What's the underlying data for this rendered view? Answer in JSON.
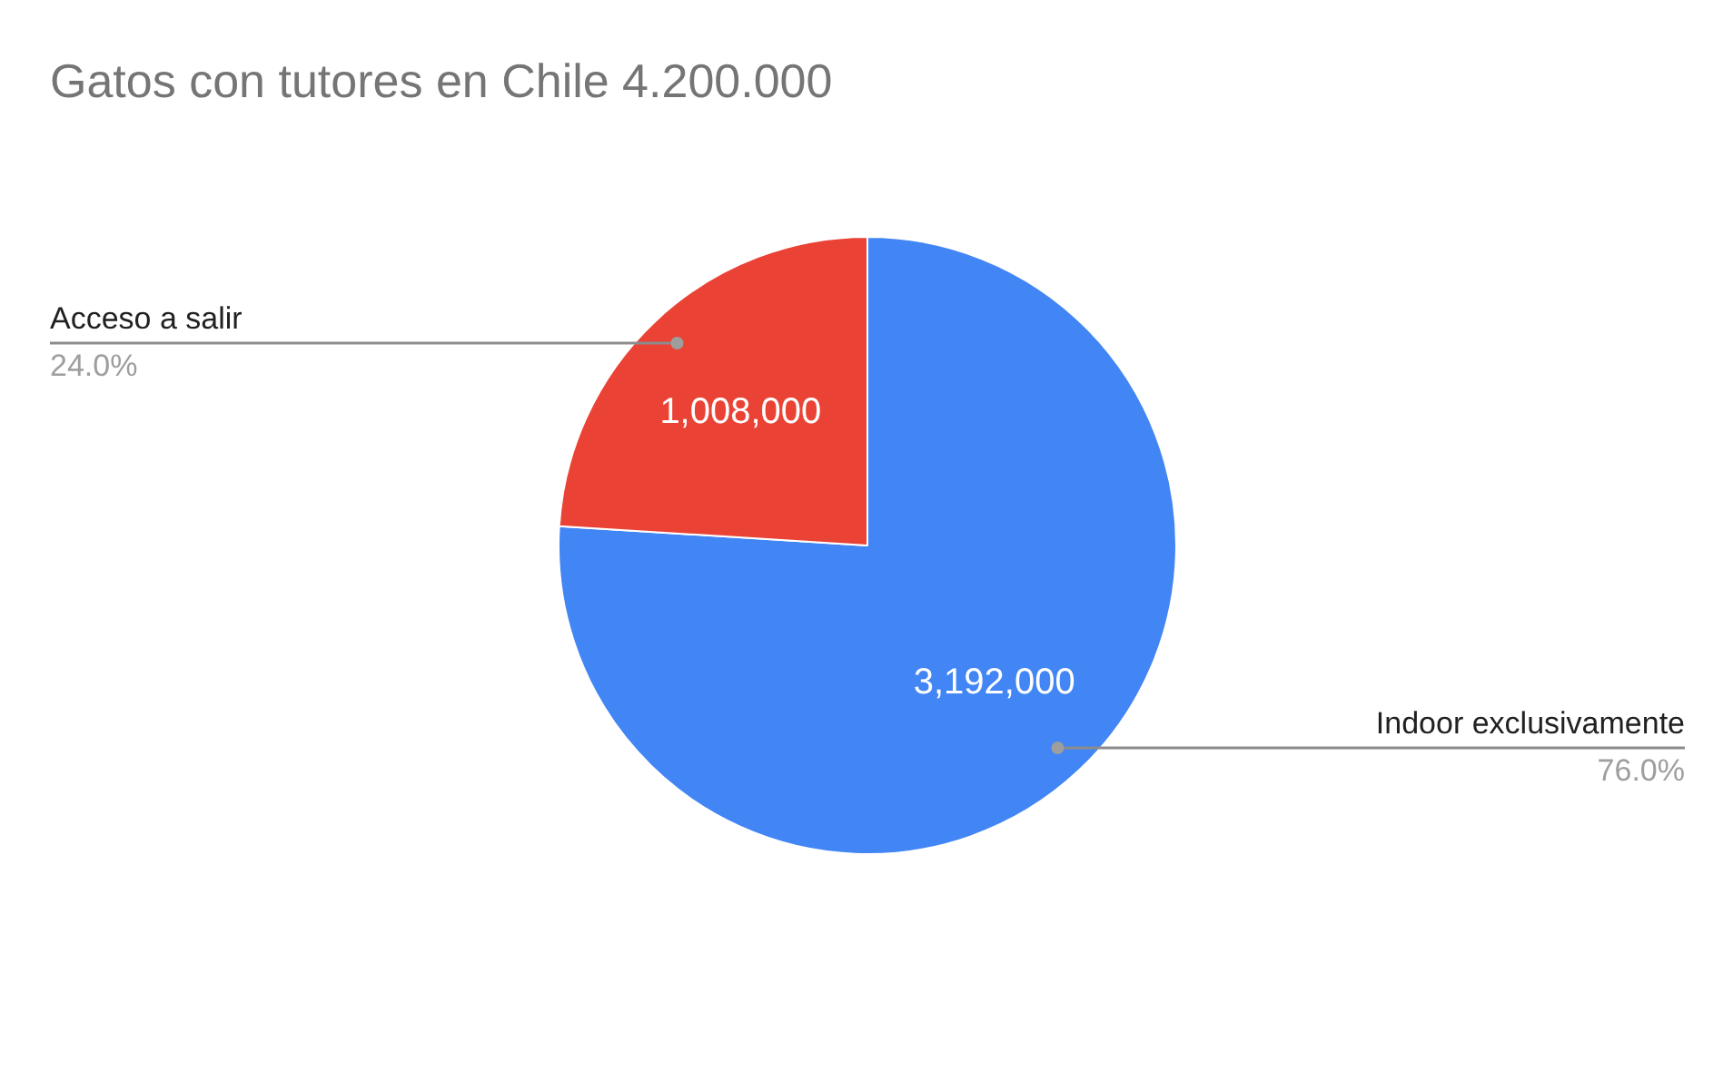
{
  "chart_data": {
    "type": "pie",
    "title": "Gatos con tutores en Chile 4.200.000",
    "categories": [
      "Indoor exclusivamente",
      "Acceso a salir"
    ],
    "values": [
      3192000,
      1008000
    ],
    "colors": [
      "#4285f4",
      "#ea4335"
    ],
    "value_labels": [
      "3,192,000",
      "1,008,000"
    ],
    "annotations": [
      {
        "text": "76.0%",
        "x": "Indoor exclusivamente"
      },
      {
        "text": "24.0%",
        "x": "Acceso a salir"
      }
    ]
  }
}
